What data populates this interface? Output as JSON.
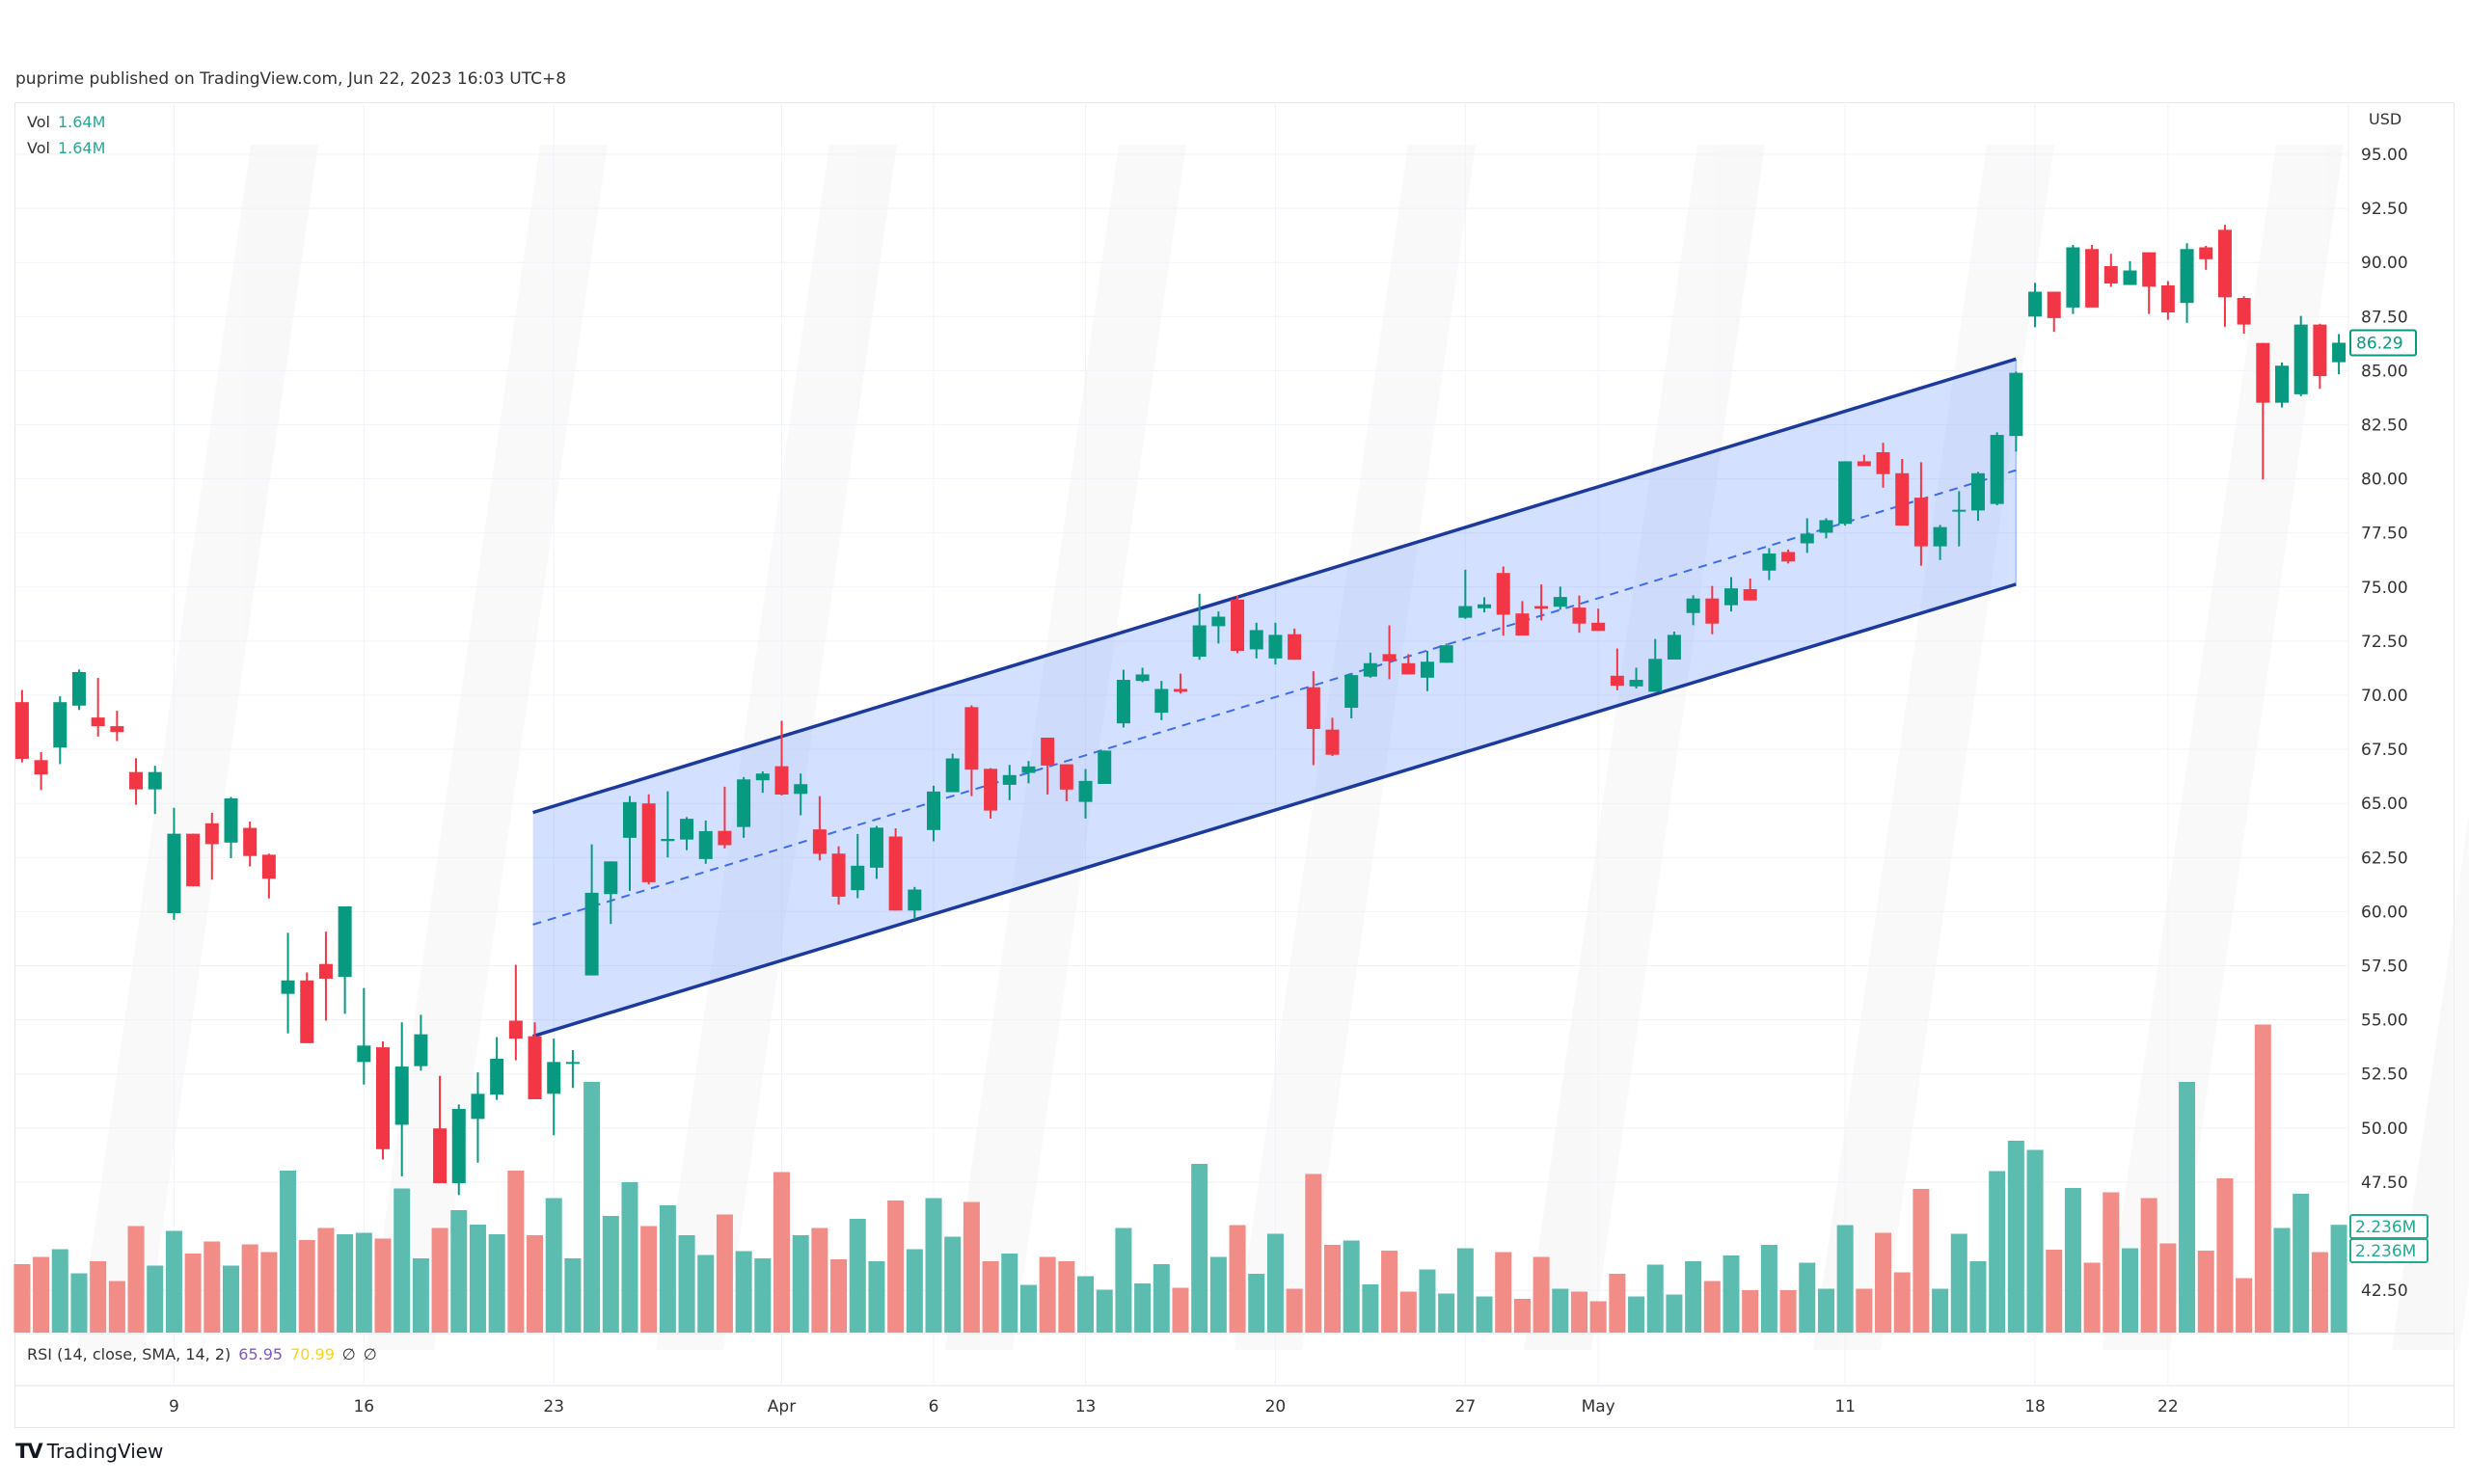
{
  "header": {
    "published": "puprime published on TradingView.com, Jun 22, 2023 16:03 UTC+8"
  },
  "legend": {
    "vol_label": "Vol",
    "vol_value": "1.64M"
  },
  "price_axis": {
    "currency": "USD",
    "ticks": [
      "95.00",
      "92.50",
      "90.00",
      "87.50",
      "85.00",
      "82.50",
      "80.00",
      "77.50",
      "75.00",
      "72.50",
      "70.00",
      "67.50",
      "65.00",
      "62.50",
      "60.00",
      "57.50",
      "55.00",
      "52.50",
      "50.00",
      "47.50",
      "42.50"
    ],
    "last_price": "86.29",
    "volume_label": "2.236M"
  },
  "rsi": {
    "label": "RSI (14, close, SMA, 14, 2)",
    "value": "65.95",
    "sma": "70.99",
    "v3": "∅",
    "v4": "∅",
    "color_value": "#7e57c2",
    "color_sma": "#f7d51d"
  },
  "time_axis": [
    {
      "label": "9",
      "bar": 8
    },
    {
      "label": "16",
      "bar": 18
    },
    {
      "label": "23",
      "bar": 28
    },
    {
      "label": "Apr",
      "bar": 40
    },
    {
      "label": "6",
      "bar": 48
    },
    {
      "label": "13",
      "bar": 56
    },
    {
      "label": "20",
      "bar": 66
    },
    {
      "label": "27",
      "bar": 76
    },
    {
      "label": "May",
      "bar": 83
    },
    {
      "label": "11",
      "bar": 96
    },
    {
      "label": "18",
      "bar": 106
    },
    {
      "label": "22",
      "bar": 113
    }
  ],
  "branding": {
    "logo_text": "TradingView"
  },
  "colors": {
    "up": "#089981",
    "down": "#f23645",
    "vol_up": "#5cbcaf",
    "vol_down": "#f28c86",
    "channel": "#1c3a9e",
    "channel_fill": "#2962ff"
  },
  "chart_data": {
    "type": "candlestick",
    "ylim": [
      40.5,
      96.5
    ],
    "grid": true,
    "ohlc": [
      [
        69.68,
        70.24,
        66.9,
        67.06
      ],
      [
        67.0,
        67.37,
        65.62,
        66.34
      ],
      [
        67.58,
        69.95,
        66.82,
        69.68
      ],
      [
        69.52,
        71.19,
        69.32,
        71.07
      ],
      [
        68.97,
        70.8,
        68.09,
        68.57
      ],
      [
        68.57,
        69.28,
        67.88,
        68.3
      ],
      [
        66.45,
        67.09,
        64.94,
        65.65
      ],
      [
        65.65,
        66.74,
        64.51,
        66.45
      ],
      [
        59.93,
        64.8,
        59.62,
        63.6
      ],
      [
        63.6,
        63.6,
        61.17,
        61.17
      ],
      [
        64.08,
        64.57,
        61.48,
        63.12
      ],
      [
        63.19,
        65.3,
        62.47,
        65.23
      ],
      [
        63.87,
        64.16,
        62.09,
        62.57
      ],
      [
        62.63,
        62.68,
        60.61,
        61.52
      ],
      [
        56.2,
        59.02,
        54.37,
        56.82
      ],
      [
        56.82,
        57.19,
        53.92,
        53.92
      ],
      [
        57.58,
        59.07,
        54.96,
        56.9
      ],
      [
        56.98,
        60.24,
        55.28,
        60.24
      ],
      [
        53.05,
        56.47,
        52.01,
        53.81
      ],
      [
        53.73,
        54.0,
        48.55,
        49.02
      ],
      [
        50.15,
        54.88,
        47.77,
        52.84
      ],
      [
        52.86,
        55.23,
        52.65,
        54.33
      ],
      [
        49.98,
        52.41,
        47.45,
        47.45
      ],
      [
        47.45,
        51.09,
        46.9,
        50.88
      ],
      [
        50.42,
        52.57,
        48.4,
        51.58
      ],
      [
        51.54,
        54.2,
        51.3,
        53.2
      ],
      [
        54.96,
        57.54,
        53.13,
        54.13
      ],
      [
        54.24,
        54.88,
        51.33,
        51.33
      ],
      [
        51.58,
        54.13,
        49.67,
        53.05
      ],
      [
        53.0,
        53.6,
        51.85,
        53.05
      ],
      [
        57.05,
        63.11,
        57.05,
        60.87
      ],
      [
        60.81,
        62.32,
        59.43,
        62.32
      ],
      [
        63.41,
        65.34,
        60.96,
        65.06
      ],
      [
        65.0,
        65.42,
        61.26,
        61.36
      ],
      [
        63.26,
        65.56,
        62.5,
        63.36
      ],
      [
        63.33,
        64.37,
        62.84,
        64.29
      ],
      [
        62.43,
        64.21,
        62.21,
        63.72
      ],
      [
        63.73,
        65.77,
        62.92,
        63.07
      ],
      [
        63.91,
        66.22,
        63.41,
        66.11
      ],
      [
        66.07,
        66.48,
        65.49,
        66.38
      ],
      [
        66.72,
        68.82,
        65.37,
        65.41
      ],
      [
        65.44,
        66.38,
        64.45,
        65.89
      ],
      [
        63.8,
        65.34,
        62.37,
        62.67
      ],
      [
        62.68,
        63.02,
        60.32,
        60.69
      ],
      [
        60.99,
        63.59,
        60.62,
        62.12
      ],
      [
        62.03,
        63.96,
        61.51,
        63.88
      ],
      [
        63.47,
        63.85,
        60.05,
        60.05
      ],
      [
        60.05,
        61.14,
        59.65,
        61.02
      ],
      [
        63.77,
        65.82,
        63.25,
        65.55
      ],
      [
        65.52,
        67.3,
        65.52,
        67.08
      ],
      [
        69.45,
        69.53,
        65.34,
        66.56
      ],
      [
        66.6,
        66.63,
        64.3,
        64.67
      ],
      [
        65.86,
        66.78,
        65.15,
        66.31
      ],
      [
        66.41,
        66.96,
        65.93,
        66.71
      ],
      [
        68.04,
        68.04,
        65.41,
        66.75
      ],
      [
        66.81,
        66.81,
        65.1,
        65.64
      ],
      [
        65.07,
        66.59,
        64.3,
        66.04
      ],
      [
        65.9,
        67.45,
        65.9,
        67.44
      ],
      [
        68.7,
        71.18,
        68.51,
        70.71
      ],
      [
        70.66,
        71.27,
        70.6,
        70.96
      ],
      [
        69.19,
        70.66,
        68.85,
        70.29
      ],
      [
        70.29,
        71.0,
        70.08,
        70.16
      ],
      [
        71.78,
        74.69,
        71.64,
        73.23
      ],
      [
        73.19,
        73.87,
        72.39,
        73.63
      ],
      [
        74.42,
        74.61,
        71.94,
        72.05
      ],
      [
        72.12,
        73.35,
        71.7,
        73.01
      ],
      [
        71.7,
        73.35,
        71.42,
        72.79
      ],
      [
        72.82,
        73.08,
        71.64,
        71.64
      ],
      [
        70.37,
        71.11,
        66.77,
        68.44
      ],
      [
        68.41,
        68.96,
        67.19,
        67.25
      ],
      [
        69.42,
        70.96,
        68.93,
        70.93
      ],
      [
        70.86,
        71.97,
        70.81,
        71.48
      ],
      [
        71.9,
        73.23,
        70.74,
        71.57
      ],
      [
        71.48,
        71.9,
        70.96,
        70.96
      ],
      [
        70.81,
        72.05,
        70.19,
        71.55
      ],
      [
        71.5,
        72.39,
        71.5,
        72.31
      ],
      [
        73.58,
        75.8,
        73.53,
        74.12
      ],
      [
        74.02,
        74.53,
        73.83,
        74.2
      ],
      [
        75.65,
        75.95,
        72.76,
        73.72
      ],
      [
        73.78,
        74.35,
        72.76,
        72.76
      ],
      [
        74.12,
        75.12,
        73.46,
        74.0
      ],
      [
        74.09,
        75.02,
        73.95,
        74.54
      ],
      [
        74.05,
        74.61,
        72.89,
        73.31
      ],
      [
        73.35,
        74.0,
        72.97,
        72.97
      ],
      [
        70.9,
        72.16,
        70.23,
        70.44
      ],
      [
        70.41,
        71.27,
        70.31,
        70.71
      ],
      [
        70.16,
        72.6,
        70.16,
        71.68
      ],
      [
        71.65,
        72.94,
        71.65,
        72.79
      ],
      [
        73.8,
        74.62,
        73.24,
        74.47
      ],
      [
        74.47,
        75.05,
        72.82,
        73.31
      ],
      [
        74.16,
        75.46,
        73.87,
        74.94
      ],
      [
        74.9,
        75.39,
        74.38,
        74.38
      ],
      [
        75.76,
        76.8,
        75.32,
        76.55
      ],
      [
        76.62,
        76.73,
        76.09,
        76.18
      ],
      [
        77.02,
        78.18,
        76.58,
        77.47
      ],
      [
        77.51,
        78.18,
        77.25,
        78.09
      ],
      [
        77.92,
        80.81,
        77.84,
        80.81
      ],
      [
        80.81,
        81.11,
        80.59,
        80.59
      ],
      [
        81.23,
        81.67,
        79.59,
        80.22
      ],
      [
        80.26,
        80.92,
        77.84,
        77.84
      ],
      [
        79.13,
        80.77,
        75.98,
        76.88
      ],
      [
        76.88,
        77.87,
        76.25,
        77.77
      ],
      [
        78.51,
        79.43,
        76.88,
        78.57
      ],
      [
        78.54,
        80.32,
        78.06,
        80.26
      ],
      [
        78.84,
        82.15,
        78.78,
        82.03
      ],
      [
        81.98,
        84.95,
        81.26,
        84.9
      ],
      [
        87.5,
        89.06,
        87.01,
        88.65
      ],
      [
        88.65,
        88.65,
        86.79,
        87.43
      ],
      [
        87.92,
        90.81,
        87.62,
        90.7
      ],
      [
        90.62,
        90.81,
        87.92,
        87.92
      ],
      [
        89.83,
        90.4,
        88.88,
        89.03
      ],
      [
        88.96,
        90.06,
        88.96,
        89.63
      ],
      [
        90.47,
        90.47,
        87.62,
        88.88
      ],
      [
        88.94,
        89.14,
        87.35,
        87.69
      ],
      [
        88.13,
        90.89,
        87.21,
        90.62
      ],
      [
        90.7,
        90.77,
        89.66,
        90.15
      ],
      [
        91.51,
        91.74,
        87.03,
        88.39
      ],
      [
        88.36,
        88.44,
        86.71,
        87.13
      ],
      [
        86.28,
        86.28,
        79.97,
        83.52
      ],
      [
        83.52,
        85.38,
        83.3,
        85.23
      ],
      [
        83.91,
        87.53,
        83.82,
        87.13
      ],
      [
        87.13,
        87.17,
        84.16,
        84.75
      ],
      [
        85.39,
        86.69,
        84.83,
        86.29
      ]
    ],
    "volume_millions": [
      1.42,
      1.57,
      1.73,
      1.23,
      1.48,
      1.07,
      2.21,
      1.39,
      2.11,
      1.64,
      1.89,
      1.39,
      1.83,
      1.67,
      3.36,
      1.92,
      2.17,
      2.04,
      2.07,
      1.95,
      2.99,
      1.54,
      2.17,
      2.54,
      2.24,
      2.04,
      3.36,
      2.02,
      2.79,
      1.54,
      5.2,
      2.42,
      3.12,
      2.21,
      2.64,
      2.02,
      1.61,
      2.45,
      1.69,
      1.54,
      3.33,
      2.02,
      2.17,
      1.52,
      2.36,
      1.48,
      2.74,
      1.73,
      2.79,
      1.99,
      2.71,
      1.48,
      1.64,
      0.99,
      1.57,
      1.48,
      1.17,
      0.89,
      2.17,
      1.02,
      1.42,
      0.93,
      3.5,
      1.57,
      2.23,
      1.22,
      2.05,
      0.91,
      3.29,
      1.82,
      1.91,
      1.0,
      1.7,
      0.85,
      1.31,
      0.81,
      1.75,
      0.75,
      1.67,
      0.7,
      1.57,
      0.91,
      0.85,
      0.65,
      1.22,
      0.75,
      1.41,
      0.79,
      1.48,
      1.07,
      1.6,
      0.88,
      1.82,
      0.88,
      1.45,
      0.91,
      2.23,
      0.91,
      2.07,
      1.25,
      2.98,
      0.91,
      2.05,
      1.48,
      3.35,
      3.98,
      3.79,
      1.72,
      3.0,
      1.45,
      2.91,
      1.75,
      2.79,
      1.85,
      5.2,
      1.7,
      3.2,
      1.13,
      6.39,
      2.17,
      2.88,
      1.67,
      2.236
    ],
    "channel": {
      "upper": [
        [
          26.9,
          64.58
        ],
        [
          105,
          85.54
        ]
      ],
      "middle": [
        [
          26.9,
          59.4
        ],
        [
          105,
          80.4
        ]
      ],
      "lower": [
        [
          26.9,
          54.24
        ],
        [
          105,
          75.13
        ]
      ]
    }
  }
}
